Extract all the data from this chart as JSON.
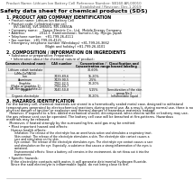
{
  "bg_color": "#ffffff",
  "header_left": "Product Name: Lithium Ion Battery Cell",
  "header_right1": "Reference Number: SB160-AR-00010",
  "header_right2": "Established / Revision: Dec.1.2019",
  "title": "Safety data sheet for chemical products (SDS)",
  "s1_title": "1. PRODUCT AND COMPANY IDENTIFICATION",
  "s1_lines": [
    "• Product name: Lithium Ion Battery Cell",
    "• Product code: Cylindrical-type cell",
    "     SVI-18650J, SVI-18650G, SVI-18650A",
    "• Company name:     Sanyo Electric Co., Ltd.  Mobile Energy Company",
    "• Address:              2012-1  Kamitondanari, Sumoto-City, Hyogo, Japan",
    "• Telephone number:   +81-799-26-4111",
    "• Fax number:  +81-799-26-4121",
    "• Emergency telephone number (Weekdays) +81-799-26-3662",
    "                                    (Night and holiday) +81-799-26-4101"
  ],
  "s2_title": "2. COMPOSITION / INFORMATION ON INGREDIENTS",
  "s2_line1": "• Substance or preparation: Preparation",
  "s2_line2": "• Information about the chemical nature of product:",
  "table_headers": [
    "Common chemical name",
    "CAS number",
    "Concentration /\nConcentration range",
    "Classification and\nhazard labeling"
  ],
  "table_rows": [
    [
      "Lithium cobalt tantalate\n(LiMn-CoTiNO4)",
      "-",
      "30-60%",
      "-"
    ],
    [
      "Iron",
      "7439-89-6",
      "15-20%",
      "-"
    ],
    [
      "Aluminum",
      "7429-90-5",
      "2-5%",
      "-"
    ],
    [
      "Graphite\n(Flake or graphite-1)\n(Al-film on graphite-1)",
      "7782-42-5\n7782-44-7",
      "10-20%",
      "-"
    ],
    [
      "Copper",
      "7440-50-8",
      "5-15%",
      "Sensitization of the skin\ngroup No.2"
    ],
    [
      "Organic electrolyte",
      "-",
      "10-20%",
      "Inflammable liquid"
    ]
  ],
  "s3_title": "3. HAZARDS IDENTIFICATION",
  "s3_para1": [
    "For the battery cell, chemical materials are stored in a hermetically sealed metal case, designed to withstand",
    "temperatures generated by electrochemical reactions during normal use. As a result, during normal use, there is no",
    "physical danger of ignition or explosion and thermal-danger of hazardous materials leakage.",
    "   However, if exposed to a fire, added mechanical shocks, decomposed, when electro within or battery may use,",
    "the gas release vent can be operated. The battery cell case will be breached at fire-patterns. Hazardous",
    "materials may be released.",
    "   Moreover, if heated strongly by the surrounding fire, acid gas may be emitted."
  ],
  "s3_bullet1_title": "• Most important hazard and effects:",
  "s3_sub1": "Human health effects:",
  "s3_sub1_lines": [
    "Inhalation: The release of the electrolyte has an anesthesia action and stimulates a respiratory tract.",
    "Skin contact: The release of the electrolyte stimulates a skin. The electrolyte skin contact causes a",
    "sore and stimulation on the skin.",
    "Eye contact: The release of the electrolyte stimulates eyes. The electrolyte eye contact causes a sore",
    "and stimulation on the eye. Especially, a substance that causes a strong inflammation of the eyes is",
    "contained.",
    "Environmental effects: Since a battery cell remains in the environment, do not throw out it into the",
    "environment."
  ],
  "s3_bullet2_title": "• Specific hazards:",
  "s3_bullet2_lines": [
    "If the electrolyte contacts with water, it will generate detrimental hydrogen fluoride.",
    "Since the said electrolyte is inflammable liquid, do not bring close to fire."
  ]
}
